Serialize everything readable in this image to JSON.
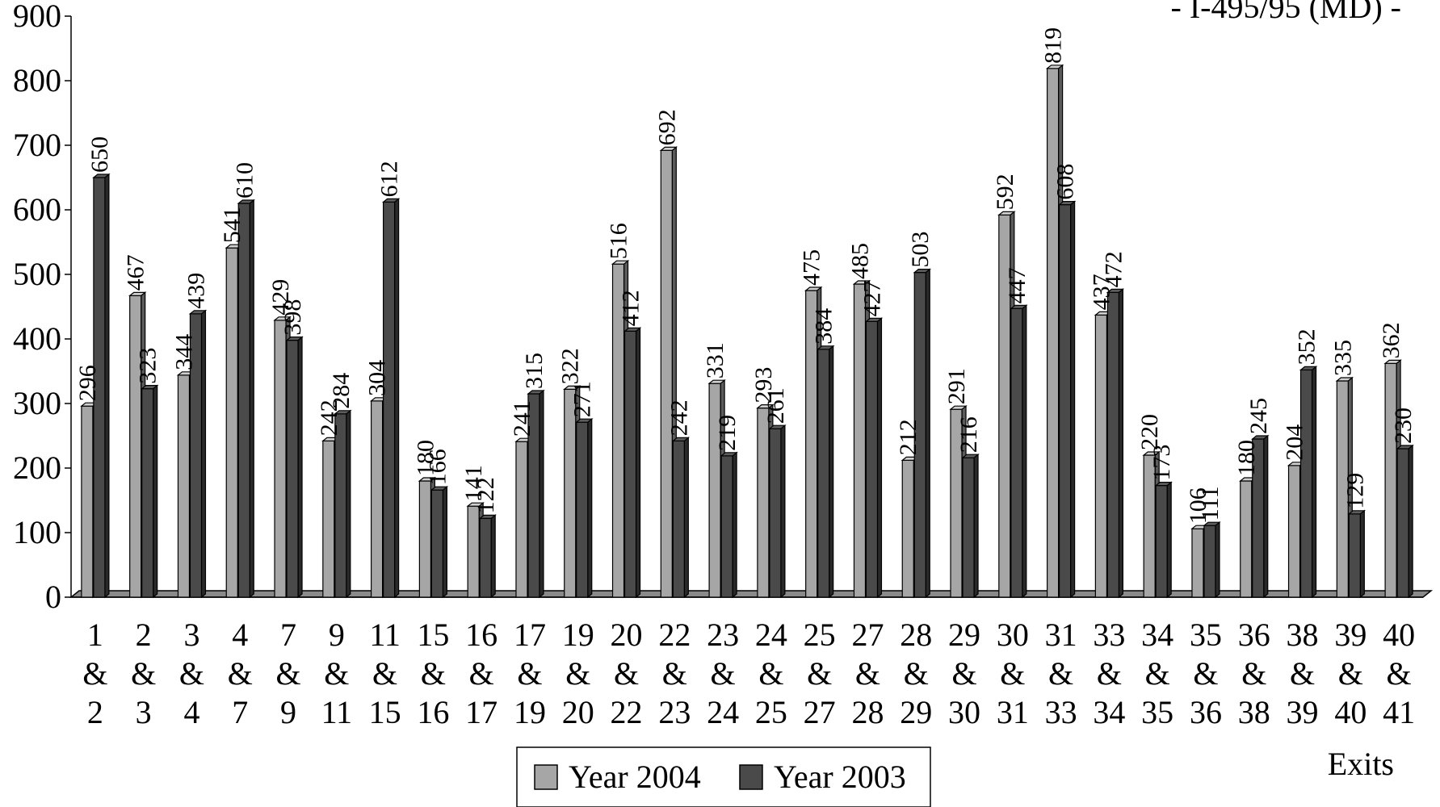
{
  "chart_data": {
    "type": "bar",
    "title": "",
    "corner_text": "- I-495/95 (MD) -",
    "xlabel": "Exits",
    "ylabel": "",
    "ylim": [
      0,
      900
    ],
    "yticks": [
      0,
      100,
      200,
      300,
      400,
      500,
      600,
      700,
      800,
      900
    ],
    "categories": [
      [
        "1",
        "&",
        "2"
      ],
      [
        "2",
        "&",
        "3"
      ],
      [
        "3",
        "&",
        "4"
      ],
      [
        "4",
        "&",
        "7"
      ],
      [
        "7",
        "&",
        "9"
      ],
      [
        "9",
        "&",
        "11"
      ],
      [
        "11",
        "&",
        "15"
      ],
      [
        "15",
        "&",
        "16"
      ],
      [
        "16",
        "&",
        "17"
      ],
      [
        "17",
        "&",
        "19"
      ],
      [
        "19",
        "&",
        "20"
      ],
      [
        "20",
        "&",
        "22"
      ],
      [
        "22",
        "&",
        "23"
      ],
      [
        "23",
        "&",
        "24"
      ],
      [
        "24",
        "&",
        "25"
      ],
      [
        "25",
        "&",
        "27"
      ],
      [
        "27",
        "&",
        "28"
      ],
      [
        "28",
        "&",
        "29"
      ],
      [
        "29",
        "&",
        "30"
      ],
      [
        "30",
        "&",
        "31"
      ],
      [
        "31",
        "&",
        "33"
      ],
      [
        "33",
        "&",
        "34"
      ],
      [
        "34",
        "&",
        "35"
      ],
      [
        "35",
        "&",
        "36"
      ],
      [
        "36",
        "&",
        "38"
      ],
      [
        "38",
        "&",
        "39"
      ],
      [
        "39",
        "&",
        "40"
      ],
      [
        "40",
        "&",
        "41"
      ]
    ],
    "series": [
      {
        "name": "Year 2004",
        "color": "#a6a6a6",
        "values": [
          296,
          467,
          344,
          541,
          429,
          242,
          304,
          180,
          141,
          241,
          322,
          516,
          692,
          331,
          293,
          475,
          485,
          212,
          291,
          592,
          819,
          437,
          220,
          106,
          180,
          204,
          335,
          362
        ]
      },
      {
        "name": "Year 2003",
        "color": "#4a4a4a",
        "values": [
          650,
          323,
          439,
          610,
          398,
          284,
          612,
          166,
          122,
          315,
          271,
          412,
          242,
          219,
          261,
          384,
          427,
          503,
          216,
          447,
          608,
          472,
          173,
          111,
          245,
          352,
          129,
          230
        ]
      }
    ],
    "legend_position": "bottom-center",
    "grid": false
  }
}
